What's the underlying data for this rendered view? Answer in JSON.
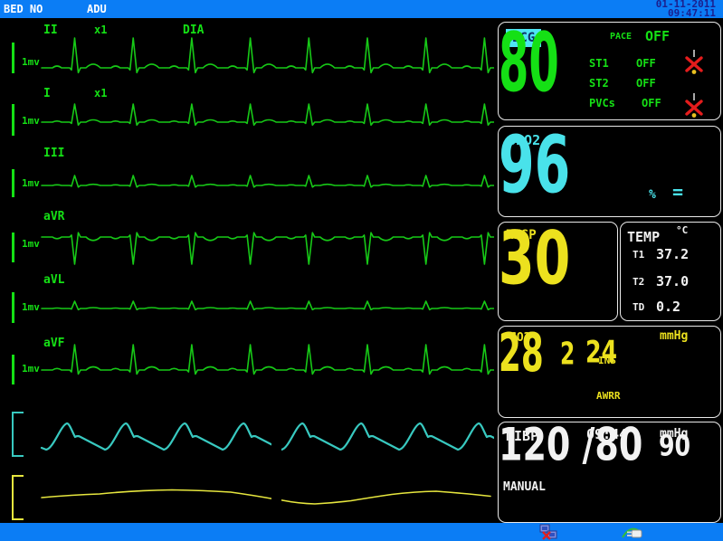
{
  "header": {
    "bed_label": "BED NO",
    "patient_type": "ADU",
    "date": "01-11-2011",
    "time": "09:47:11"
  },
  "waveforms": {
    "ecg_leads": [
      {
        "lead": "II",
        "gain": "x1",
        "filter": "DIA",
        "scale": "1mv"
      },
      {
        "lead": "I",
        "gain": "x1",
        "filter": "",
        "scale": "1mv"
      },
      {
        "lead": "III",
        "gain": "",
        "filter": "",
        "scale": "1mv"
      },
      {
        "lead": "aVR",
        "gain": "",
        "filter": "",
        "scale": "1mv"
      },
      {
        "lead": "aVL",
        "gain": "",
        "filter": "",
        "scale": "1mv"
      },
      {
        "lead": "aVF",
        "gain": "",
        "filter": "",
        "scale": "1mv"
      }
    ],
    "pleth_name": "spo2-pleth-wave",
    "resp_name": "co2-wave"
  },
  "panels": {
    "ecg": {
      "title": "ECG",
      "hr": "80",
      "pace_label": "PACE",
      "pace_value": "OFF",
      "st1_label": "ST1",
      "st1_value": "OFF",
      "st2_label": "ST2",
      "st2_value": "OFF",
      "pvcs_label": "PVCs",
      "pvcs_value": "OFF",
      "alarm_icon": "alarm-off-icon"
    },
    "spo2": {
      "title": "SPO2",
      "value": "96",
      "unit": "%",
      "bar_symbol": "="
    },
    "resp": {
      "title": "RESP",
      "value": "30"
    },
    "temp": {
      "title": "TEMP",
      "unit": "°C",
      "rows": [
        {
          "label": "T1",
          "value": "37.2"
        },
        {
          "label": "T2",
          "value": "37.0"
        },
        {
          "label": "TD",
          "value": "0.2"
        }
      ]
    },
    "co2": {
      "title": "CO2",
      "unit": "mmHg",
      "value": "28",
      "ins_label": "INS",
      "ins_value": "2",
      "awrr_label": "AWRR",
      "awrr_value": "24"
    },
    "nibp": {
      "title": "NIBP",
      "time": "09:44",
      "unit": "mmHg",
      "value": "120 /80",
      "map": "90",
      "mode": "MANUAL"
    }
  },
  "footer": {
    "icons": [
      {
        "name": "network-disconnected-icon"
      },
      {
        "name": "cable-connection-icon"
      }
    ]
  },
  "colors": {
    "green": "#15e015",
    "trace_green": "#17c917",
    "cyan": "#49e2ea",
    "trace_cyan": "#38c9c0",
    "yellow": "#ece11e",
    "trace_yellow": "#e6e63e",
    "white": "#f2f2f2",
    "bar_blue": "#0b7df5",
    "alarm_red": "#e41c1c",
    "badge_cyan": "#4ee4f4"
  }
}
